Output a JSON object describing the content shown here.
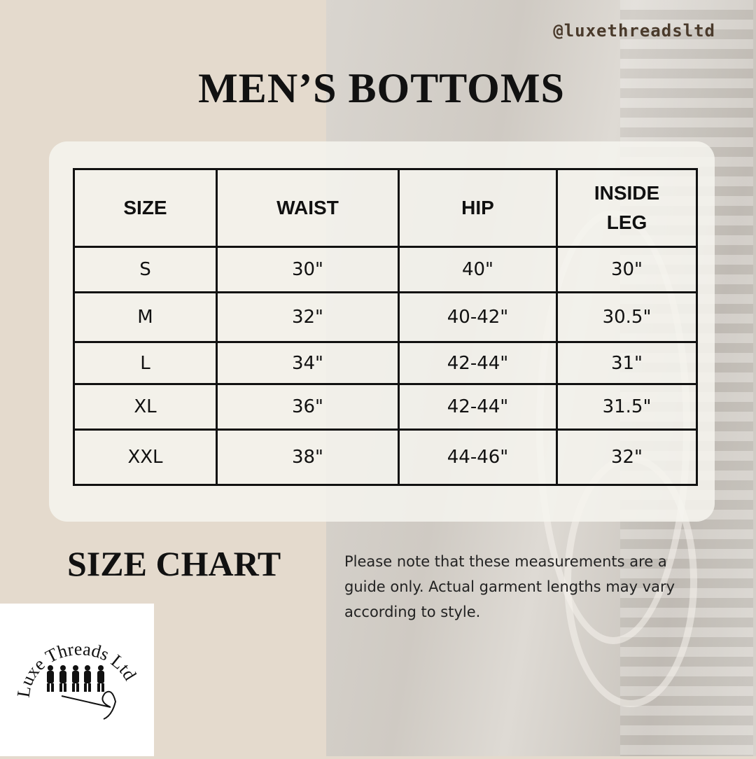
{
  "handle": "@luxethreadsltd",
  "title": "MEN’S BOTTOMS",
  "table": {
    "headers": [
      "SIZE",
      "WAIST",
      "HIP",
      "INSIDE LEG"
    ],
    "rows": [
      [
        "S",
        "30\"",
        "40\"",
        "30\""
      ],
      [
        "M",
        "32\"",
        "40-42\"",
        "30.5\""
      ],
      [
        "L",
        "34\"",
        "42-44\"",
        "31\""
      ],
      [
        "XL",
        "36\"",
        "42-44\"",
        "31.5\""
      ],
      [
        "XXL",
        "38\"",
        "44-46\"",
        "32\""
      ]
    ]
  },
  "subtitle": "SIZE CHART",
  "note": "Please note that these measurements are a guide only. Actual garment lengths may vary according to style.",
  "logo": {
    "text": "Luxe Threads Ltd"
  }
}
